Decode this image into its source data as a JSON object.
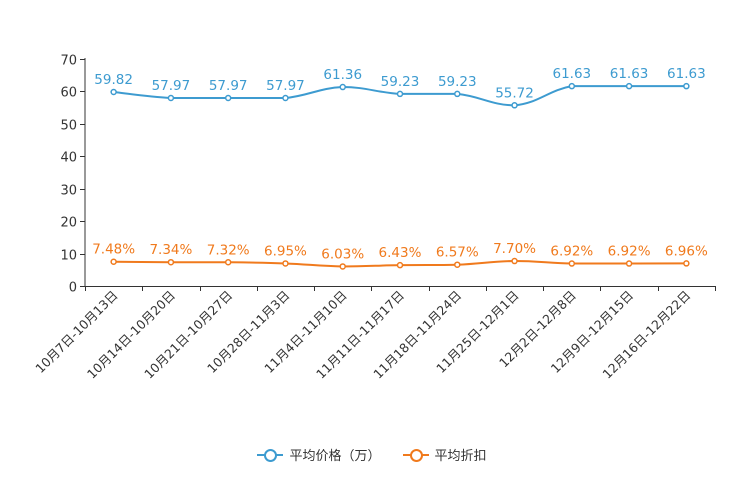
{
  "chart_data": {
    "type": "line",
    "title": "",
    "xlabel": "",
    "ylabel": "",
    "ylim": [
      0,
      70
    ],
    "yticks": [
      0,
      10,
      20,
      30,
      40,
      50,
      60,
      70
    ],
    "categories": [
      "10月7日-10月13日",
      "10月14日-10月20日",
      "10月21日-10月27日",
      "10月28日-11月3日",
      "11月4日-11月10日",
      "11月11日-11月17日",
      "11月18日-11月24日",
      "11月25日-12月1日",
      "12月2日-12月8日",
      "12月9日-12月15日",
      "12月16日-12月22日"
    ],
    "series": [
      {
        "name": "平均价格（万）",
        "color": "#3d9bd0",
        "values": [
          59.82,
          57.97,
          57.97,
          57.97,
          61.36,
          59.23,
          59.23,
          55.72,
          61.63,
          61.63,
          61.63
        ],
        "labels": [
          "59.82",
          "57.97",
          "57.97",
          "57.97",
          "61.36",
          "59.23",
          "59.23",
          "55.72",
          "61.63",
          "61.63",
          "61.63"
        ]
      },
      {
        "name": "平均折扣",
        "color": "#f07a1d",
        "values": [
          7.48,
          7.34,
          7.32,
          6.95,
          6.03,
          6.43,
          6.57,
          7.7,
          6.92,
          6.92,
          6.96
        ],
        "labels": [
          "7.48%",
          "7.34%",
          "7.32%",
          "6.95%",
          "6.03%",
          "6.43%",
          "6.57%",
          "7.70%",
          "6.92%",
          "6.92%",
          "6.96%"
        ]
      }
    ],
    "legend_position": "bottom-center"
  }
}
